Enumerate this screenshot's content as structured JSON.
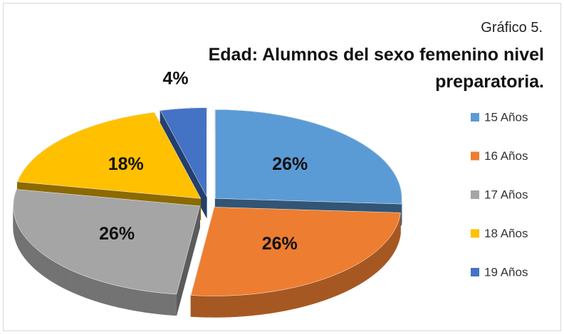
{
  "chart_data": {
    "type": "pie",
    "subtitle": "Gráfico 5.",
    "title": "Edad: Alumnos del sexo femenino nivel preparatoria.",
    "categories": [
      "15 Años",
      "16 Años",
      "17 Años",
      "18 Años",
      "19 Años"
    ],
    "values": [
      26,
      26,
      26,
      18,
      4
    ],
    "value_labels": [
      "26%",
      "26%",
      "26%",
      "18%",
      "4%"
    ],
    "colors": [
      "#5b9bd5",
      "#ed7d31",
      "#a5a5a5",
      "#ffc000",
      "#4472c4"
    ],
    "legend": "right"
  }
}
